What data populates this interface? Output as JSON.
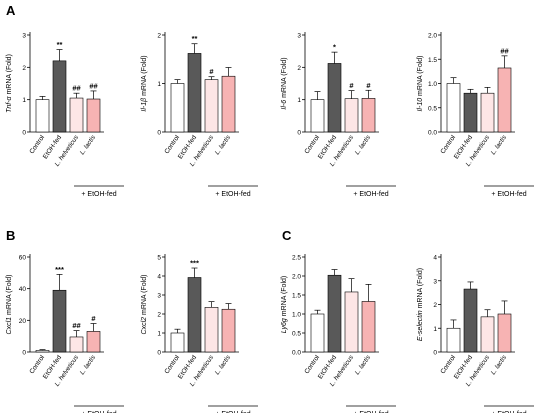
{
  "panel_labels": [
    "A",
    "B",
    "C"
  ],
  "category_colors": [
    "#ffffff",
    "#595959",
    "#fde6e6",
    "#f7b3b3"
  ],
  "chart_data": [
    {
      "type": "bar",
      "panel": "A",
      "categories": [
        "Control",
        "EtOH-fed",
        "L. helveticus",
        "L. lactis"
      ],
      "ylabel_gene": "Tnf-α",
      "ylabel_suffix": " mRNA (Fold)",
      "ylim": [
        0,
        3
      ],
      "yticks": [
        0,
        1,
        2,
        3
      ],
      "values": [
        1.0,
        2.2,
        1.05,
        1.02
      ],
      "errors": [
        0.1,
        0.35,
        0.15,
        0.25
      ],
      "annotations": [
        "",
        "**",
        "##",
        "##"
      ],
      "group_label": "+ EtOH-fed"
    },
    {
      "type": "bar",
      "categories": [
        "Control",
        "EtOH-fed",
        "L. helveticus",
        "L. lactis"
      ],
      "ylabel_gene": "Il-1β",
      "ylabel_suffix": " mRNA (Fold)",
      "ylim": [
        0,
        2
      ],
      "yticks": [
        0,
        1,
        2
      ],
      "values": [
        1.0,
        1.62,
        1.08,
        1.15
      ],
      "errors": [
        0.08,
        0.2,
        0.06,
        0.18
      ],
      "annotations": [
        "",
        "**",
        "#",
        ""
      ],
      "group_label": "+ EtOH-fed"
    },
    {
      "type": "bar",
      "categories": [
        "Control",
        "EtOH-fed",
        "L. helveticus",
        "L. lactis"
      ],
      "ylabel_gene": "Il-6",
      "ylabel_suffix": " mRNA (Fold)",
      "ylim": [
        0,
        3
      ],
      "yticks": [
        0,
        1,
        2,
        3
      ],
      "values": [
        1.0,
        2.12,
        1.03,
        1.04
      ],
      "errors": [
        0.25,
        0.35,
        0.25,
        0.25
      ],
      "annotations": [
        "",
        "*",
        "#",
        "#"
      ],
      "group_label": "+ EtOH-fed"
    },
    {
      "type": "bar",
      "categories": [
        "Control",
        "EtOH-fed",
        "L. helveticus",
        "L. lactis"
      ],
      "ylabel_gene": "Il-10",
      "ylabel_suffix": " mRNA (Fold)",
      "ylim": [
        0,
        2
      ],
      "yticks": [
        0.0,
        0.5,
        1.0,
        1.5,
        2.0
      ],
      "values": [
        1.0,
        0.8,
        0.8,
        1.32
      ],
      "errors": [
        0.12,
        0.08,
        0.12,
        0.25
      ],
      "annotations": [
        "",
        "",
        "",
        "##"
      ],
      "group_label": "+ EtOH-fed"
    },
    {
      "type": "bar",
      "panel": "B",
      "categories": [
        "Control",
        "EtOH-fed",
        "L. helveticus",
        "L. lactis"
      ],
      "ylabel_gene": "Cxcl1",
      "ylabel_suffix": " mRNA (Fold)",
      "ylim": [
        0,
        60
      ],
      "yticks": [
        0,
        20,
        40,
        60
      ],
      "values": [
        1.0,
        39,
        9.5,
        13
      ],
      "errors": [
        0.5,
        10,
        4,
        5
      ],
      "annotations": [
        "",
        "***",
        "##",
        "#"
      ],
      "group_label": "+ EtOH-fed"
    },
    {
      "type": "bar",
      "categories": [
        "Control",
        "EtOH-fed",
        "L. helveticus",
        "L. lactis"
      ],
      "ylabel_gene": "Cxcl2",
      "ylabel_suffix": " mRNA (Fold)",
      "ylim": [
        0,
        5
      ],
      "yticks": [
        0,
        1,
        2,
        3,
        4,
        5
      ],
      "values": [
        1.0,
        3.92,
        2.35,
        2.25
      ],
      "errors": [
        0.2,
        0.5,
        0.3,
        0.3
      ],
      "annotations": [
        "",
        "***",
        "",
        ""
      ],
      "group_label": "+ EtOH-fed"
    },
    {
      "type": "bar",
      "panel": "C",
      "categories": [
        "Control",
        "EtOH-fed",
        "L. helveticus",
        "L. lactis"
      ],
      "ylabel_gene": "Ly6g",
      "ylabel_suffix": " mRNA (Fold)",
      "ylim": [
        0,
        2.5
      ],
      "yticks": [
        0.0,
        0.5,
        1.0,
        1.5,
        2.0,
        2.5
      ],
      "values": [
        1.0,
        2.02,
        1.58,
        1.33
      ],
      "errors": [
        0.1,
        0.15,
        0.35,
        0.45
      ],
      "annotations": [
        "",
        "",
        "",
        ""
      ],
      "group_label": "+ EtOH-fed"
    },
    {
      "type": "bar",
      "categories": [
        "Control",
        "EtOH-fed",
        "L. helveticus",
        "L. lactis"
      ],
      "ylabel_gene": "E-selectin",
      "ylabel_suffix": " mRNA (Fold)",
      "ylim": [
        0,
        4
      ],
      "yticks": [
        0,
        1,
        2,
        3,
        4
      ],
      "values": [
        1.0,
        2.65,
        1.48,
        1.6
      ],
      "errors": [
        0.35,
        0.3,
        0.3,
        0.55
      ],
      "annotations": [
        "",
        "",
        "",
        ""
      ],
      "group_label": "+ EtOH-fed"
    }
  ]
}
